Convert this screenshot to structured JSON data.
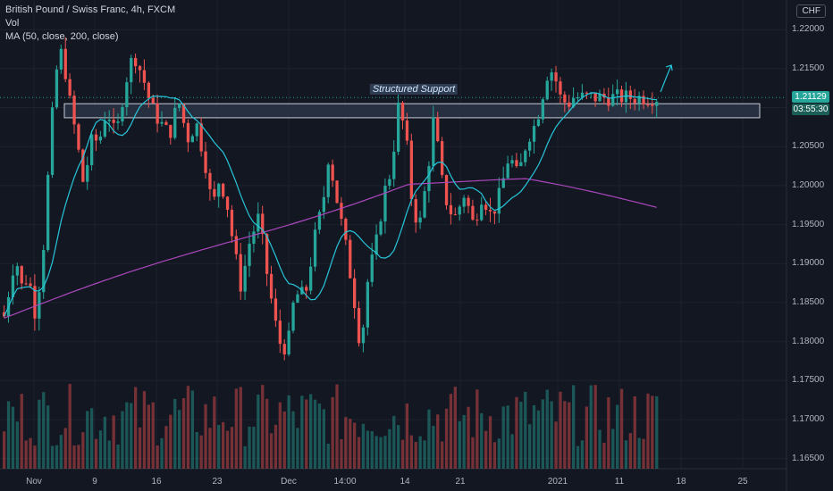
{
  "legend": {
    "title": "British Pound / Swiss Franc, 4h, FXCM",
    "volume": "Vol",
    "ma": "MA (50, close, 200, close)"
  },
  "currency": "CHF",
  "annotation": {
    "label": "Structured Support"
  },
  "last_price": {
    "value": "1.21129",
    "countdown": "03:55:30"
  },
  "colors": {
    "up": "#26a69a",
    "down": "#ef5350",
    "ma50": "#26c6da",
    "ma200": "#ab47bc",
    "zone_fill": "#2a3444",
    "zone_border": "#c8ccd6",
    "badge_up": "#26a69a",
    "badge_time": "#1b5e57"
  },
  "chart_data": {
    "type": "candlestick",
    "symbol": "GBPCHF",
    "timeframe": "4h",
    "y_tick_labels": [
      "1.22000",
      "1.21500",
      "1.21000",
      "1.20500",
      "1.20000",
      "1.19500",
      "1.19000",
      "1.18500",
      "1.18000",
      "1.17500",
      "1.17000",
      "1.16500"
    ],
    "x_tick_labels": [
      "Nov",
      "9",
      "16",
      "23",
      "Dec",
      "14:00",
      "14",
      "21",
      "2021",
      "11",
      "18",
      "25"
    ],
    "ylim": [
      1.1637,
      1.2238
    ],
    "support_zone": [
      1.2087,
      1.2105
    ],
    "waypoints": [
      [
        0,
        1.1845
      ],
      [
        6,
        1.183
      ],
      [
        12,
        1.188
      ],
      [
        18,
        1.191
      ],
      [
        24,
        1.187
      ],
      [
        32,
        1.1885
      ],
      [
        40,
        1.1835
      ],
      [
        48,
        1.1905
      ],
      [
        54,
        1.201
      ],
      [
        62,
        1.214
      ],
      [
        70,
        1.2175
      ],
      [
        78,
        1.211
      ],
      [
        86,
        1.206
      ],
      [
        94,
        1.2
      ],
      [
        102,
        1.2055
      ],
      [
        112,
        1.206
      ],
      [
        120,
        1.21
      ],
      [
        130,
        1.206
      ],
      [
        140,
        1.213
      ],
      [
        150,
        1.217
      ],
      [
        160,
        1.214
      ],
      [
        170,
        1.21
      ],
      [
        180,
        1.208
      ],
      [
        190,
        1.2065
      ],
      [
        200,
        1.211
      ],
      [
        210,
        1.206
      ],
      [
        220,
        1.208
      ],
      [
        230,
        1.203
      ],
      [
        238,
        1.197
      ],
      [
        246,
        1.201
      ],
      [
        254,
        1.198
      ],
      [
        262,
        1.192
      ],
      [
        270,
        1.187
      ],
      [
        280,
        1.193
      ],
      [
        290,
        1.196
      ],
      [
        300,
        1.188
      ],
      [
        312,
        1.18
      ],
      [
        322,
        1.179
      ],
      [
        330,
        1.186
      ],
      [
        342,
        1.186
      ],
      [
        352,
        1.193
      ],
      [
        362,
        1.198
      ],
      [
        368,
        1.204
      ],
      [
        376,
        1.199
      ],
      [
        386,
        1.193
      ],
      [
        396,
        1.186
      ],
      [
        404,
        1.179
      ],
      [
        412,
        1.188
      ],
      [
        422,
        1.193
      ],
      [
        430,
        1.199
      ],
      [
        438,
        1.202
      ],
      [
        446,
        1.21
      ],
      [
        454,
        1.207
      ],
      [
        462,
        1.197
      ],
      [
        470,
        1.195
      ],
      [
        478,
        1.201
      ],
      [
        486,
        1.209
      ],
      [
        494,
        1.201
      ],
      [
        502,
        1.197
      ],
      [
        510,
        1.196
      ],
      [
        520,
        1.199
      ],
      [
        530,
        1.195
      ],
      [
        540,
        1.199
      ],
      [
        550,
        1.196
      ],
      [
        560,
        1.199
      ],
      [
        570,
        1.204
      ],
      [
        580,
        1.201
      ],
      [
        590,
        1.206
      ],
      [
        600,
        1.208
      ],
      [
        608,
        1.212
      ],
      [
        614,
        1.215
      ],
      [
        620,
        1.2145
      ],
      [
        628,
        1.211
      ],
      [
        636,
        1.2105
      ],
      [
        642,
        1.2113
      ]
    ]
  }
}
